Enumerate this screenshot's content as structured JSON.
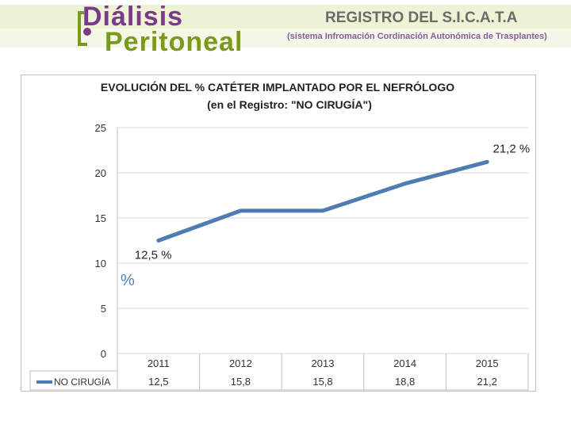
{
  "header": {
    "logo_line1": "Diálisis",
    "logo_line2": "Peritoneal",
    "registry_title": "REGISTRO DEL S.I.C.A.T.A",
    "registry_subtitle": "(sistema Infromación Cordinación Autonómica de Trasplantes)"
  },
  "colors": {
    "series": "#4f7db3",
    "grid": "#d9d9d9",
    "logo_purple": "#7a3a8a",
    "logo_green": "#7a9a1e"
  },
  "chart_data": {
    "type": "line",
    "title": "EVOLUCIÓN DEL % CATÉTER IMPLANTADO POR EL NEFRÓLOGO",
    "subtitle": "(en el Registro: \"NO CIRUGÍA\")",
    "ylabel": "%",
    "ylim": [
      0,
      25
    ],
    "yticks": [
      "0",
      "5",
      "10",
      "15",
      "20",
      "25"
    ],
    "categories": [
      "2011",
      "2012",
      "2013",
      "2014",
      "2015"
    ],
    "series": [
      {
        "name": "NO CIRUGÍA",
        "values": [
          12.5,
          15.8,
          15.8,
          18.8,
          21.2
        ],
        "table_values": [
          "12,5",
          "15,8",
          "15,8",
          "18,8",
          "21,2"
        ]
      }
    ],
    "annotations": [
      {
        "label": "12,5 %",
        "category_index": 0
      },
      {
        "label": "21,2 %",
        "category_index": 4
      }
    ],
    "legend": "data-table-left",
    "grid": true
  }
}
